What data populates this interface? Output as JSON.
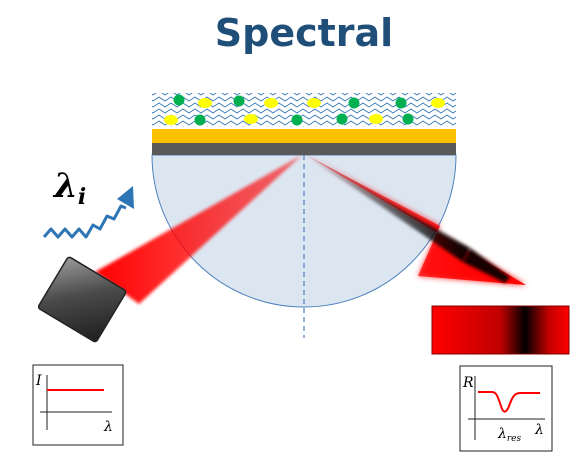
{
  "title": "Spectral",
  "incident_label": {
    "symbol": "λ",
    "subscript": "i"
  },
  "input_plot": {
    "y_label": "I",
    "x_label": "λ"
  },
  "output_plot": {
    "y_label": "R",
    "x_label": "λ",
    "dip_label": "λ",
    "dip_subscript": "res"
  },
  "colors": {
    "title": "#1f4e79",
    "beam": "#ff0000",
    "prism": "#dce6f1",
    "gold_film": "#ffc000",
    "metal_layer": "#595959",
    "analyte_green": "#00b050",
    "analyte_yellow": "#ffff00",
    "wave_lines": "#2e75b6"
  }
}
